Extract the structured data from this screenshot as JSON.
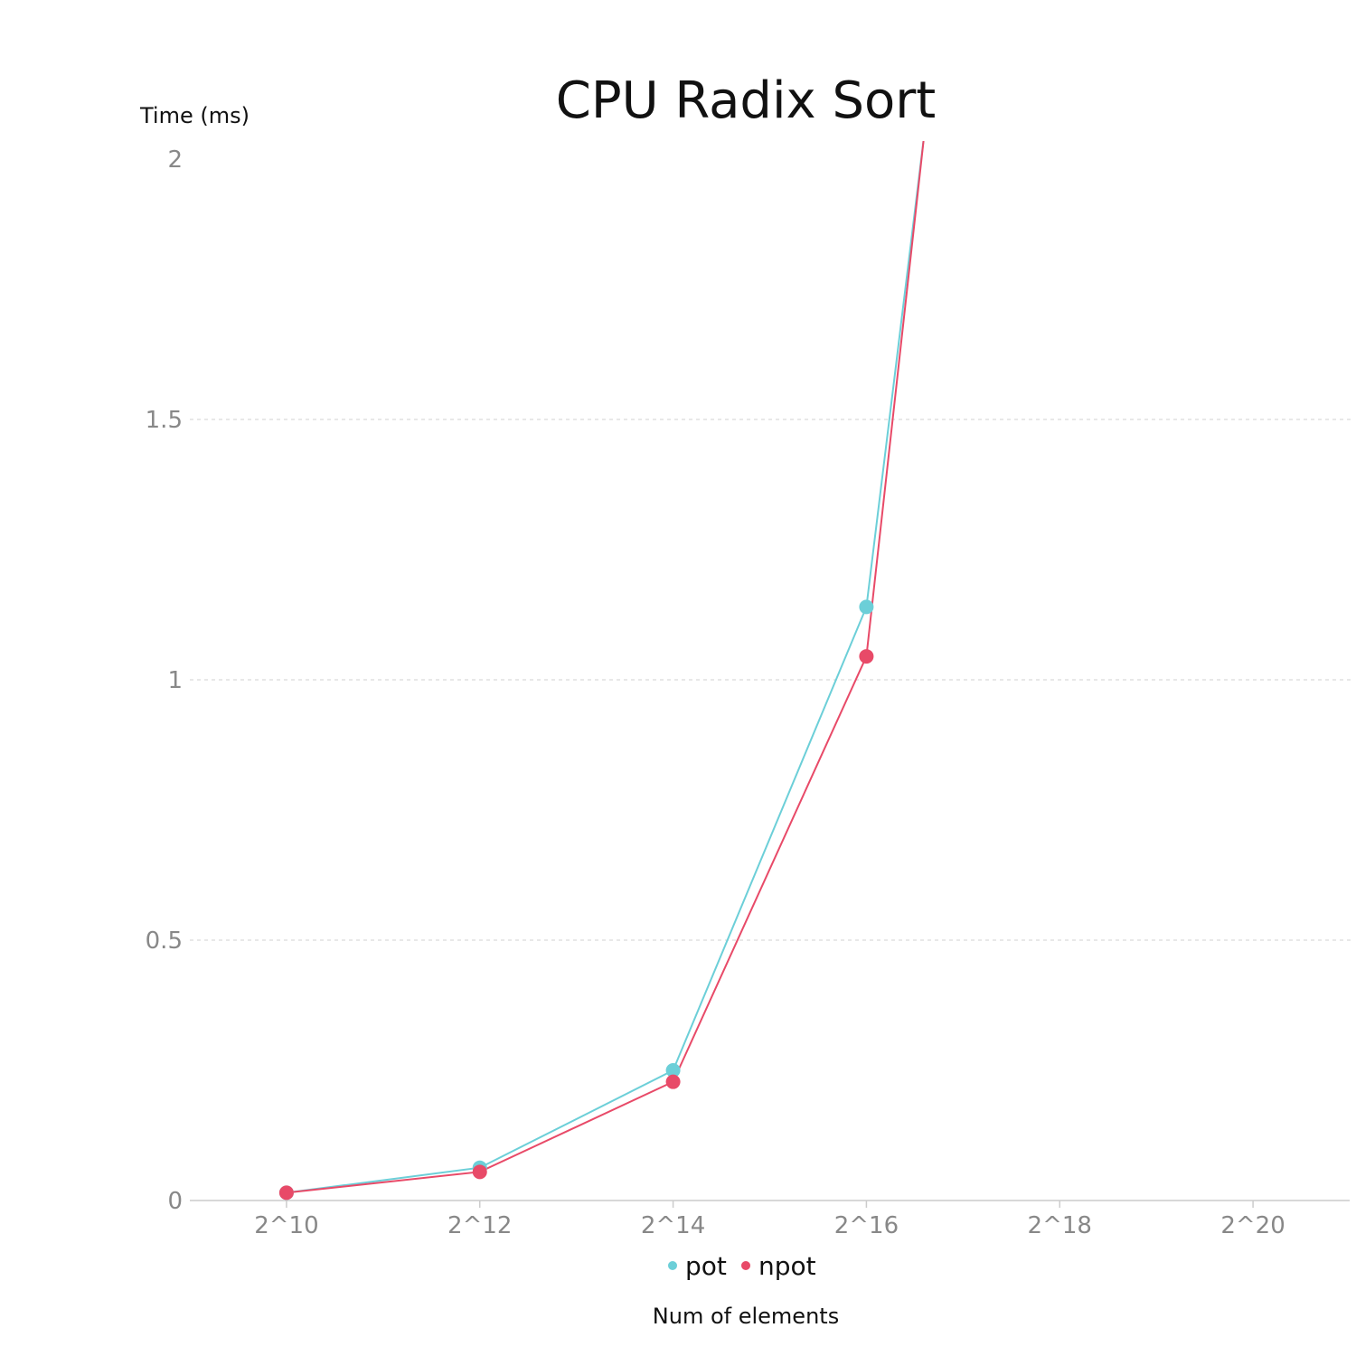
{
  "chart_data": {
    "type": "line",
    "title": "CPU Radix Sort",
    "xlabel": "Num of elements",
    "ylabel": "Time (ms)",
    "categories": [
      "2^10",
      "2^12",
      "2^14",
      "2^16",
      "2^18",
      "2^20"
    ],
    "x_positions": [
      10,
      12,
      14,
      16,
      18,
      20
    ],
    "xlim": [
      9,
      21
    ],
    "ylim": [
      0,
      2
    ],
    "yticks": [
      0,
      0.5,
      1,
      1.5,
      2
    ],
    "ytick_labels": [
      "0",
      "0.5",
      "1",
      "1.5",
      "2"
    ],
    "grid": true,
    "legend_position": "bottom",
    "series": [
      {
        "name": "pot",
        "color": "#6ccfd8",
        "x": [
          10,
          12,
          14,
          16,
          16.6
        ],
        "values": [
          0.015,
          0.063,
          0.25,
          1.14,
          2.05
        ]
      },
      {
        "name": "npot",
        "color": "#e84a68",
        "x": [
          10,
          12,
          14,
          16,
          16.6
        ],
        "values": [
          0.015,
          0.055,
          0.228,
          1.045,
          2.05
        ]
      }
    ]
  }
}
